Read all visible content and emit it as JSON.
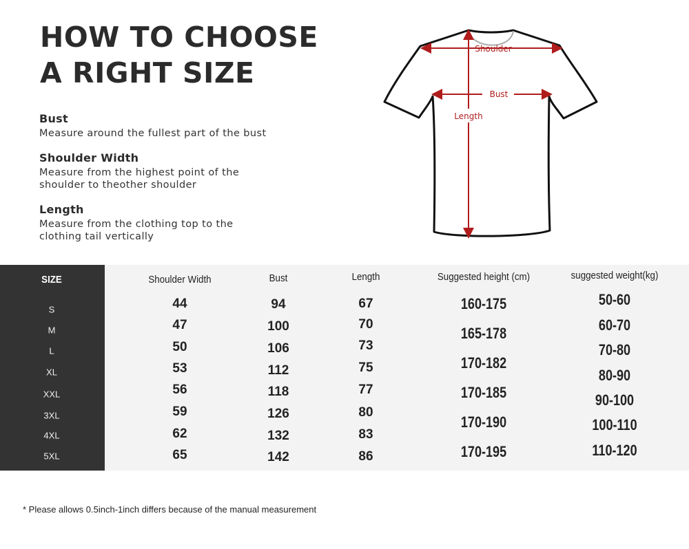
{
  "title": [
    "HOW TO CHOOSE",
    "A RIGHT SIZE"
  ],
  "sections": [
    {
      "heading": "Bust",
      "lines": [
        "Measure around the fullest part of the bust"
      ]
    },
    {
      "heading": "Shoulder Width",
      "lines": [
        "Measure from the highest point of the",
        "shoulder to theother shoulder"
      ]
    },
    {
      "heading": "Length",
      "lines": [
        "Measure from the clothing top to the",
        "clothing tail vertically"
      ]
    }
  ],
  "diagram": {
    "labels": {
      "shoulder": "Shoulder",
      "bust": "Bust",
      "length": "Length"
    },
    "arrow_color": "#b01c1c"
  },
  "table": {
    "headers": {
      "size": "SIZE",
      "shoulder": "Shoulder Width",
      "bust": "Bust",
      "length": "Length",
      "height": "Suggested height (cm)",
      "weight": "suggested  weight(kg)"
    },
    "sizes": [
      "S",
      "M",
      "L",
      "XL",
      "XXL",
      "3XL",
      "4XL",
      "5XL"
    ],
    "shoulder": [
      "44",
      "47",
      "50",
      "53",
      "56",
      "59",
      "62",
      "65"
    ],
    "bust": [
      "94",
      "100",
      "106",
      "112",
      "118",
      "126",
      "132",
      "142"
    ],
    "length": [
      "67",
      "70",
      "73",
      "75",
      "77",
      "80",
      "83",
      "86"
    ],
    "height": [
      "160-175",
      "165-178",
      "170-182",
      "170-185",
      "170-190",
      "170-195"
    ],
    "weight": [
      "50-60",
      "60-70",
      "70-80",
      "80-90",
      "90-100",
      "100-110",
      "110-120"
    ]
  },
  "note": "* Please allows 0.5inch-1inch differs because of the  manual measurement",
  "colors": {
    "size_column": "#333333",
    "table_bg": "#f3f3f3",
    "accent": "#b01c1c"
  }
}
